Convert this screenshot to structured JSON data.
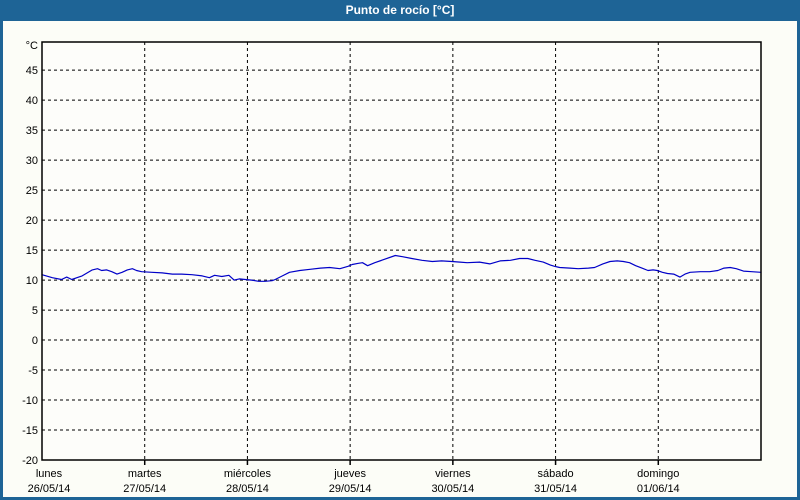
{
  "window": {
    "title": "Punto de rocío [°C]"
  },
  "colors": {
    "header_bg": "#1e6496",
    "frame_border": "#1e6496",
    "title_text": "#ffffff",
    "page_bg": "#fcfdf7",
    "plot_bg": "#fdfdfa",
    "grid": "#000000",
    "axis": "#000000",
    "line": "#0000c8",
    "label_text": "#000000"
  },
  "y_axis": {
    "unit": "°C",
    "tick_values": [
      45,
      40,
      35,
      30,
      25,
      20,
      15,
      10,
      5,
      0,
      -5,
      -10,
      -15,
      -20
    ]
  },
  "x_axis": {
    "span_days": 7,
    "day_labels": [
      {
        "name": "lunes",
        "date": "26/05/14"
      },
      {
        "name": "martes",
        "date": "27/05/14"
      },
      {
        "name": "miércoles",
        "date": "28/05/14"
      },
      {
        "name": "jueves",
        "date": "29/05/14"
      },
      {
        "name": "viernes",
        "date": "30/05/14"
      },
      {
        "name": "sábado",
        "date": "31/05/14"
      },
      {
        "name": "domingo",
        "date": "01/06/14"
      }
    ]
  },
  "chart_data": {
    "type": "line",
    "title": "Punto de rocío [°C]",
    "ylabel": "°C",
    "ylim": [
      -20,
      49.7
    ],
    "x_unit": "days (0 = lunes 26/05/14 00:00)",
    "x_range_days": [
      0,
      7
    ],
    "grid": true,
    "legend": "none",
    "series": [
      {
        "name": "Punto de rocío",
        "color": "#0000c8",
        "points": [
          [
            0.0,
            10.9
          ],
          [
            0.1,
            10.4
          ],
          [
            0.19,
            10.1
          ],
          [
            0.24,
            10.5
          ],
          [
            0.29,
            10.1
          ],
          [
            0.34,
            10.4
          ],
          [
            0.39,
            10.7
          ],
          [
            0.49,
            11.7
          ],
          [
            0.54,
            11.9
          ],
          [
            0.58,
            11.6
          ],
          [
            0.63,
            11.7
          ],
          [
            0.68,
            11.4
          ],
          [
            0.73,
            11.0
          ],
          [
            0.78,
            11.3
          ],
          [
            0.83,
            11.7
          ],
          [
            0.88,
            11.9
          ],
          [
            0.92,
            11.6
          ],
          [
            0.97,
            11.4
          ],
          [
            1.07,
            11.3
          ],
          [
            1.17,
            11.2
          ],
          [
            1.27,
            11.0
          ],
          [
            1.36,
            11.0
          ],
          [
            1.46,
            10.9
          ],
          [
            1.56,
            10.7
          ],
          [
            1.63,
            10.4
          ],
          [
            1.68,
            10.8
          ],
          [
            1.75,
            10.6
          ],
          [
            1.82,
            10.8
          ],
          [
            1.87,
            10.0
          ],
          [
            1.92,
            10.2
          ],
          [
            1.98,
            10.1
          ],
          [
            2.04,
            10.0
          ],
          [
            2.11,
            9.8
          ],
          [
            2.17,
            9.8
          ],
          [
            2.24,
            9.9
          ],
          [
            2.27,
            10.1
          ],
          [
            2.34,
            10.7
          ],
          [
            2.41,
            11.3
          ],
          [
            2.51,
            11.6
          ],
          [
            2.61,
            11.8
          ],
          [
            2.71,
            12.0
          ],
          [
            2.8,
            12.1
          ],
          [
            2.9,
            11.9
          ],
          [
            2.98,
            12.3
          ],
          [
            3.02,
            12.6
          ],
          [
            3.08,
            12.8
          ],
          [
            3.12,
            12.9
          ],
          [
            3.17,
            12.4
          ],
          [
            3.24,
            12.9
          ],
          [
            3.34,
            13.5
          ],
          [
            3.44,
            14.1
          ],
          [
            3.51,
            13.9
          ],
          [
            3.6,
            13.6
          ],
          [
            3.7,
            13.3
          ],
          [
            3.8,
            13.1
          ],
          [
            3.89,
            13.2
          ],
          [
            3.99,
            13.1
          ],
          [
            4.07,
            13.0
          ],
          [
            4.14,
            12.9
          ],
          [
            4.26,
            13.0
          ],
          [
            4.36,
            12.7
          ],
          [
            4.46,
            13.2
          ],
          [
            4.56,
            13.3
          ],
          [
            4.65,
            13.6
          ],
          [
            4.73,
            13.6
          ],
          [
            4.8,
            13.3
          ],
          [
            4.88,
            13.0
          ],
          [
            4.95,
            12.5
          ],
          [
            4.99,
            12.3
          ],
          [
            5.04,
            12.1
          ],
          [
            5.14,
            12.0
          ],
          [
            5.22,
            11.9
          ],
          [
            5.32,
            12.0
          ],
          [
            5.38,
            12.1
          ],
          [
            5.46,
            12.7
          ],
          [
            5.53,
            13.1
          ],
          [
            5.6,
            13.2
          ],
          [
            5.66,
            13.1
          ],
          [
            5.72,
            12.9
          ],
          [
            5.78,
            12.4
          ],
          [
            5.84,
            12.0
          ],
          [
            5.9,
            11.6
          ],
          [
            5.95,
            11.7
          ],
          [
            5.99,
            11.6
          ],
          [
            6.04,
            11.3
          ],
          [
            6.09,
            11.1
          ],
          [
            6.15,
            11.0
          ],
          [
            6.21,
            10.5
          ],
          [
            6.26,
            11.0
          ],
          [
            6.31,
            11.3
          ],
          [
            6.41,
            11.4
          ],
          [
            6.5,
            11.4
          ],
          [
            6.58,
            11.6
          ],
          [
            6.64,
            12.0
          ],
          [
            6.7,
            12.1
          ],
          [
            6.76,
            11.9
          ],
          [
            6.83,
            11.5
          ],
          [
            6.91,
            11.4
          ],
          [
            7.0,
            11.3
          ]
        ]
      }
    ]
  }
}
